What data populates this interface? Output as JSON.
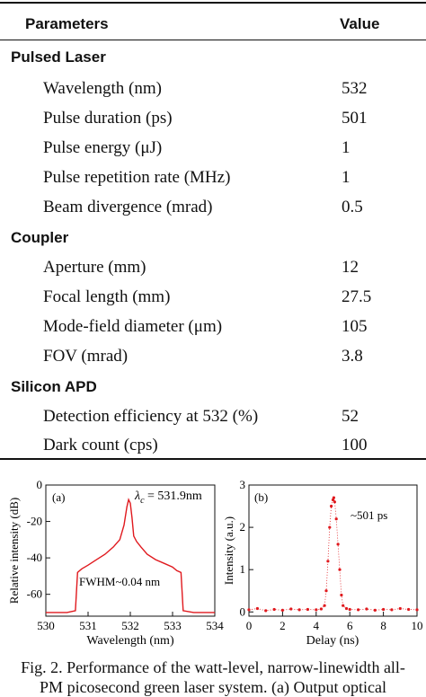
{
  "table": {
    "header": {
      "parameters": "Parameters",
      "value": "Value"
    },
    "sections": [
      {
        "title": "Pulsed Laser",
        "rows": [
          {
            "label": "Wavelength (nm)",
            "value": "532"
          },
          {
            "label": "Pulse duration (ps)",
            "value": "501"
          },
          {
            "label": "Pulse energy (μJ)",
            "value": "1"
          },
          {
            "label": "Pulse repetition rate (MHz)",
            "value": "1"
          },
          {
            "label": "Beam divergence (mrad)",
            "value": "0.5"
          }
        ]
      },
      {
        "title": "Coupler",
        "rows": [
          {
            "label": "Aperture (mm)",
            "value": "12"
          },
          {
            "label": "Focal length (mm)",
            "value": "27.5"
          },
          {
            "label": "Mode-field diameter (μm)",
            "value": "105"
          },
          {
            "label": "FOV (mrad)",
            "value": "3.8"
          }
        ]
      },
      {
        "title": "Silicon APD",
        "rows": [
          {
            "label": "Detection efficiency at 532 (%)",
            "value": "52"
          },
          {
            "label": "Dark count (cps)",
            "value": "100"
          }
        ]
      }
    ]
  },
  "figure": {
    "panel_a": {
      "tag": "(a)",
      "lambda_symbol": "λ",
      "lambda_sub": "c",
      "lambda_value": " = 531.9nm",
      "fwhm_label": "FWHM~0.04 nm",
      "xlabel": "Wavelength (nm)",
      "ylabel": "Relative intensity (dB)"
    },
    "panel_b": {
      "tag": "(b)",
      "annotation": "~501 ps",
      "xlabel": "Delay (ns)",
      "ylabel": "Intensity (a.u.)"
    },
    "caption_line1": "Fig. 2. Performance of the watt-level, narrow-linewidth all-",
    "caption_line2": "PM picosecond green laser system. (a) Output optical"
  },
  "chart_data": [
    {
      "type": "line",
      "title": "",
      "xlabel": "Wavelength (nm)",
      "ylabel": "Relative intensity (dB)",
      "xlim": [
        530,
        534
      ],
      "ylim": [
        -72,
        0
      ],
      "xticks": [
        530,
        531,
        532,
        533,
        534
      ],
      "yticks": [
        -60,
        -40,
        -20,
        0
      ],
      "series": [
        {
          "x": [
            530.0,
            530.5,
            530.7,
            530.75,
            530.85,
            531.0,
            531.2,
            531.4,
            531.6,
            531.75,
            531.85,
            531.92,
            531.96,
            532.0,
            532.04,
            532.08,
            532.15,
            532.25,
            532.4,
            532.6,
            532.8,
            533.0,
            533.1,
            533.2,
            533.25,
            533.5,
            534.0
          ],
          "y": [
            -70,
            -70,
            -69,
            -48,
            -46,
            -44,
            -41,
            -38,
            -34,
            -30,
            -22,
            -12,
            -8,
            -10,
            -18,
            -28,
            -31,
            -34,
            -38,
            -41,
            -43,
            -45,
            -47,
            -48,
            -69,
            -70,
            -70
          ],
          "color": "#e0191e"
        }
      ]
    },
    {
      "type": "scatter",
      "title": "",
      "xlabel": "Delay (ns)",
      "ylabel": "Intensity (a.u.)",
      "xlim": [
        0,
        10
      ],
      "ylim": [
        -0.1,
        3
      ],
      "xticks": [
        0,
        2,
        4,
        6,
        8,
        10
      ],
      "yticks": [
        0,
        1,
        2,
        3
      ],
      "series": [
        {
          "x": [
            0.0,
            0.5,
            1.0,
            1.5,
            2.0,
            2.5,
            3.0,
            3.5,
            4.0,
            4.3,
            4.5,
            4.6,
            4.7,
            4.8,
            4.9,
            5.0,
            5.05,
            5.1,
            5.2,
            5.3,
            5.4,
            5.5,
            5.6,
            5.8,
            6.0,
            6.5,
            7.0,
            7.5,
            8.0,
            8.5,
            9.0,
            9.5,
            10.0
          ],
          "y": [
            0.05,
            0.08,
            0.03,
            0.06,
            0.04,
            0.07,
            0.05,
            0.06,
            0.05,
            0.07,
            0.15,
            0.5,
            1.2,
            2.0,
            2.5,
            2.65,
            2.7,
            2.6,
            2.2,
            1.6,
            1.0,
            0.4,
            0.15,
            0.08,
            0.06,
            0.05,
            0.07,
            0.04,
            0.06,
            0.05,
            0.08,
            0.06,
            0.05
          ],
          "color": "#e0191e"
        }
      ]
    }
  ]
}
